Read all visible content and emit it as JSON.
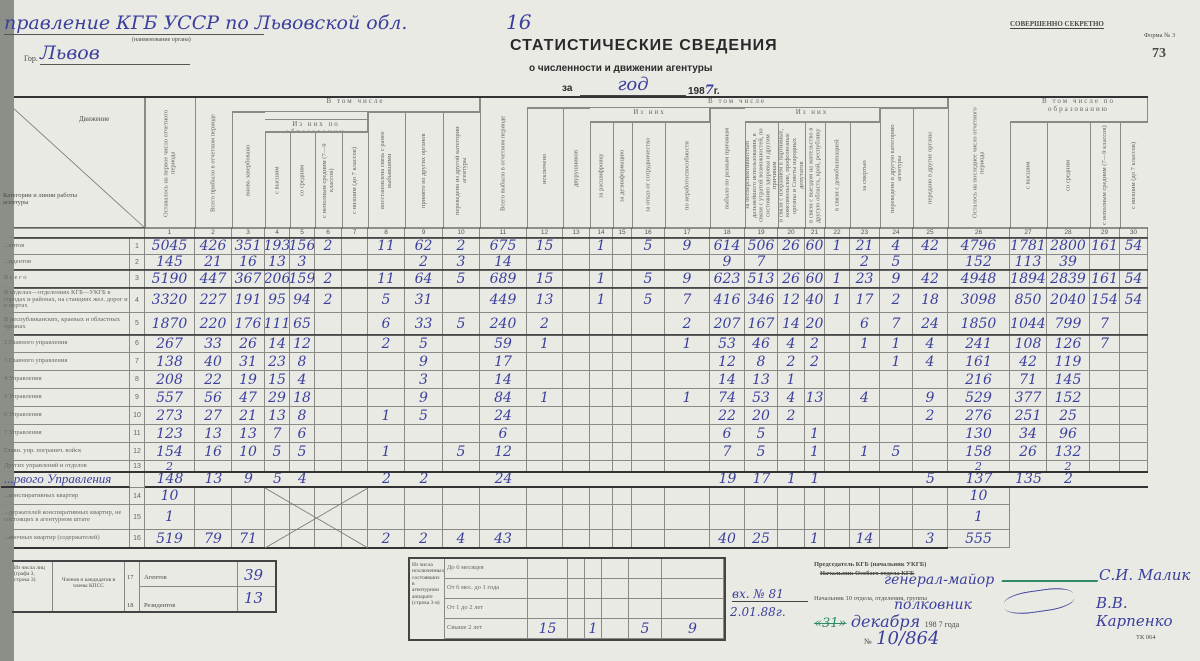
{
  "header": {
    "organ": "правление КГБ УССР по Львовской обл.",
    "organ_caption": "(наименование органа)",
    "city_label": "Гор.",
    "city": "Львов",
    "sheet_number": "16",
    "title": "СТАТИСТИЧЕСКИЕ СВЕДЕНИЯ",
    "subtitle": "о численности и движении агентуры",
    "period_prefix": "за",
    "period": "год",
    "year_prefix": "198",
    "year_digit": "7",
    "year_suffix": "г.",
    "secrecy": "СОВЕРШЕННО СЕКРЕТНО",
    "form": "Форма № 3",
    "page_number": "73"
  },
  "table": {
    "corner_top": "Движение",
    "corner_bottom": "Категории и линии работы агентуры",
    "groups": {
      "in_total_1": "В том числе",
      "education_1": "Из них по образованию",
      "in_total_2": "В том числе",
      "of_them_1": "Из них",
      "of_them_2": "Из них",
      "education_2": "В том числе по образованию"
    },
    "columns": [
      "Оставалось на первое число отчетного периода",
      "Всего прибыло в отчетном периоде",
      "вновь завербовано",
      "с высшим",
      "со средним",
      "с неполным средним (7—9 классов)",
      "с низшим (до 7 классов)",
      "восстановлена связь с ранее выбывшими",
      "принято из других органов",
      "переведено из другой категории агентуры",
      "Всего выбыло в отчетном периоде",
      "исключено",
      "двурушников",
      "за расшифровку",
      "за дезинформацию",
      "за отказ от сотрудничества",
      "по неработоспособности",
      "выбыло по разным причинам",
      "за бесперспективностью дальнейшего использования, в связи с утратой возможностей, по состоянию здоровья и другим причинам",
      "в связи с избранием в партийные, комсомольские, профсоюзные органы и Советы народных депутатов",
      "в связи с выездом на жительство в другую область, край, республику",
      "в связи с демобилизацией",
      "за смертью",
      "переведено в другую категорию агентуры",
      "передано в другие органы",
      "Осталось на последнее число отчетного периода",
      "с высшим",
      "со средним",
      "с неполным средним (7—9 классов)",
      "с низшим (до 7 классов)"
    ],
    "rows": [
      {
        "label": "...ентов",
        "n": "1",
        "v": [
          "5045",
          "426",
          "351",
          "193",
          "156",
          "2",
          "",
          "11",
          "62",
          "2",
          "675",
          "15",
          "",
          "1",
          "",
          "5",
          "9",
          "614",
          "506",
          "26",
          "60",
          "1",
          "21",
          "4",
          "42",
          "4796",
          "1781",
          "2800",
          "161",
          "54"
        ]
      },
      {
        "label": "...идентов",
        "n": "2",
        "v": [
          "145",
          "21",
          "16",
          "13",
          "3",
          "",
          "",
          "",
          "2",
          "3",
          "14",
          "",
          "",
          "",
          "",
          "",
          "",
          "9",
          "7",
          "",
          "",
          "",
          "2",
          "5",
          "",
          "152",
          "113",
          "39",
          "",
          ""
        ]
      },
      {
        "label": "В с е г о",
        "n": "3",
        "v": [
          "5190",
          "447",
          "367",
          "206",
          "159",
          "2",
          "",
          "11",
          "64",
          "5",
          "689",
          "15",
          "",
          "1",
          "",
          "5",
          "9",
          "623",
          "513",
          "26",
          "60",
          "1",
          "23",
          "9",
          "42",
          "4948",
          "1894",
          "2839",
          "161",
          "54"
        ]
      },
      {
        "label": "В отделах—отделениях КГБ—УКГБ в городах и районах, на станциях жел. дорог и в портах",
        "n": "4",
        "v": [
          "3320",
          "227",
          "191",
          "95",
          "94",
          "2",
          "",
          "5",
          "31",
          "",
          "449",
          "13",
          "",
          "1",
          "",
          "5",
          "7",
          "416",
          "346",
          "12",
          "40",
          "1",
          "17",
          "2",
          "18",
          "3098",
          "850",
          "2040",
          "154",
          "54"
        ]
      },
      {
        "label": "В республиканских, краевых и областных органах",
        "n": "5",
        "v": [
          "1870",
          "220",
          "176",
          "111",
          "65",
          "",
          "",
          "6",
          "33",
          "5",
          "240",
          "2",
          "",
          "",
          "",
          "",
          "2",
          "207",
          "167",
          "14",
          "20",
          "",
          "6",
          "7",
          "24",
          "1850",
          "1044",
          "799",
          "7",
          ""
        ]
      },
      {
        "label": "2 Главного управления",
        "n": "6",
        "v": [
          "267",
          "33",
          "26",
          "14",
          "12",
          "",
          "",
          "2",
          "5",
          "",
          "59",
          "1",
          "",
          "",
          "",
          "",
          "1",
          "53",
          "46",
          "4",
          "2",
          "",
          "1",
          "1",
          "4",
          "241",
          "108",
          "126",
          "7",
          ""
        ]
      },
      {
        "label": "3 Главного управления",
        "n": "7",
        "v": [
          "138",
          "40",
          "31",
          "23",
          "8",
          "",
          "",
          "",
          "9",
          "",
          "17",
          "",
          "",
          "",
          "",
          "",
          "",
          "12",
          "8",
          "2",
          "2",
          "",
          "",
          "1",
          "4",
          "161",
          "42",
          "119",
          "",
          ""
        ]
      },
      {
        "label": "4 Управления",
        "n": "8",
        "v": [
          "208",
          "22",
          "19",
          "15",
          "4",
          "",
          "",
          "",
          "3",
          "",
          "14",
          "",
          "",
          "",
          "",
          "",
          "",
          "14",
          "13",
          "1",
          "",
          "",
          "",
          "",
          "",
          "216",
          "71",
          "145",
          "",
          ""
        ]
      },
      {
        "label": "5 Управления",
        "n": "9",
        "v": [
          "557",
          "56",
          "47",
          "29",
          "18",
          "",
          "",
          "",
          "9",
          "",
          "84",
          "1",
          "",
          "",
          "",
          "",
          "1",
          "74",
          "53",
          "4",
          "13",
          "",
          "4",
          "",
          "9",
          "529",
          "377",
          "152",
          "",
          ""
        ]
      },
      {
        "label": "6 Управления",
        "n": "10",
        "v": [
          "273",
          "27",
          "21",
          "13",
          "8",
          "",
          "",
          "1",
          "5",
          "",
          "24",
          "",
          "",
          "",
          "",
          "",
          "",
          "22",
          "20",
          "2",
          "",
          "",
          "",
          "",
          "2",
          "276",
          "251",
          "25",
          "",
          ""
        ]
      },
      {
        "label": "7 Управления",
        "n": "11",
        "v": [
          "123",
          "13",
          "13",
          "7",
          "6",
          "",
          "",
          "",
          "",
          "",
          "6",
          "",
          "",
          "",
          "",
          "",
          "",
          "6",
          "5",
          "",
          "1",
          "",
          "",
          "",
          "",
          "130",
          "34",
          "96",
          "",
          ""
        ]
      },
      {
        "label": "Главн. упр. погранич. войск",
        "n": "12",
        "v": [
          "154",
          "16",
          "10",
          "5",
          "5",
          "",
          "",
          "1",
          "",
          "5",
          "12",
          "",
          "",
          "",
          "",
          "",
          "",
          "7",
          "5",
          "",
          "1",
          "",
          "1",
          "5",
          "",
          "158",
          "26",
          "132",
          "",
          ""
        ]
      },
      {
        "label": "Других управлений и отделов",
        "n": "13",
        "v": [
          "2",
          "",
          "",
          "",
          "",
          "",
          "",
          "",
          "",
          "",
          "",
          "",
          "",
          "",
          "",
          "",
          "",
          "",
          "",
          "",
          "",
          "",
          "",
          "",
          "",
          "2",
          "",
          "2",
          "",
          ""
        ]
      },
      {
        "label": "...рвого Управления",
        "n": "",
        "v": [
          "148",
          "13",
          "9",
          "5",
          "4",
          "",
          "",
          "2",
          "2",
          "",
          "24",
          "",
          "",
          "",
          "",
          "",
          "",
          "19",
          "17",
          "1",
          "1",
          "",
          "",
          "",
          "5",
          "137",
          "135",
          "2",
          "",
          ""
        ]
      },
      {
        "label": "...конспиративных квартир",
        "n": "14",
        "v": [
          "10",
          "",
          "",
          "",
          "",
          "",
          "",
          "",
          "",
          "",
          "",
          "",
          "",
          "",
          "",
          "",
          "",
          "",
          "",
          "",
          "",
          "",
          "",
          "",
          "",
          "10"
        ]
      },
      {
        "label": "...держателей конспиративных квартир, не состоящих в агентурном штате",
        "n": "15",
        "v": [
          "1",
          "",
          "",
          "",
          "",
          "",
          "",
          "",
          "",
          "",
          "",
          "",
          "",
          "",
          "",
          "",
          "",
          "",
          "",
          "",
          "",
          "",
          "",
          "",
          "",
          "1"
        ]
      },
      {
        "label": "...явочных квартир (содержателей)",
        "n": "16",
        "v": [
          "519",
          "79",
          "71",
          "",
          "",
          "",
          "",
          "2",
          "2",
          "4",
          "43",
          "",
          "",
          "",
          "",
          "",
          "",
          "40",
          "25",
          "",
          "1",
          "",
          "14",
          "",
          "3",
          "555"
        ]
      }
    ]
  },
  "party_box": {
    "from": "Из числа лиц (графа 3, строка 3)",
    "members": "Членов и кандидатов в члены КПСС",
    "rows": [
      {
        "n": "17",
        "label": "Агентов",
        "value": "39"
      },
      {
        "n": "18",
        "label": "Резидентов",
        "value": "13"
      }
    ]
  },
  "excluded_box": {
    "title": "Из числа исключенных состоявших в агентурном аппарате (строка 3-я)",
    "rows": [
      {
        "label": "До 6 месяцев",
        "v": [
          "",
          "",
          "",
          "",
          "",
          ""
        ]
      },
      {
        "label": "От 6 мес. до 1 года",
        "v": [
          "",
          "",
          "",
          "",
          "",
          ""
        ]
      },
      {
        "label": "От 1 до 2 лет",
        "v": [
          "",
          "",
          "",
          "",
          "",
          ""
        ]
      },
      {
        "label": "Свыше 2 лет",
        "v": [
          "15",
          "",
          "1",
          "",
          "5",
          "9"
        ]
      }
    ]
  },
  "signatures": {
    "incoming_no": "вх. № 81",
    "incoming_date": "2.01.88г.",
    "chair_line": "Председатель КГБ (начальник УКГБ)",
    "special_line": "Начальник Особого отдела КГБ",
    "rank1": "генерал-майор",
    "name1": "С.И. Малик",
    "dept_line": "Начальник 10 отдела, отделения, группы",
    "rank2": "полковник",
    "name2": "В.В. Карпенко",
    "date_day": "«31»",
    "date_month": "декабря",
    "date_year": "198 7 года",
    "doc_no_label": "№",
    "doc_no": "10/864",
    "print_code": "ТК 064"
  },
  "colors": {
    "paper": "#e9eae4",
    "ink": "#3b3f9c",
    "print": "#4a4a4a",
    "signature_green": "#2e8a6a"
  }
}
